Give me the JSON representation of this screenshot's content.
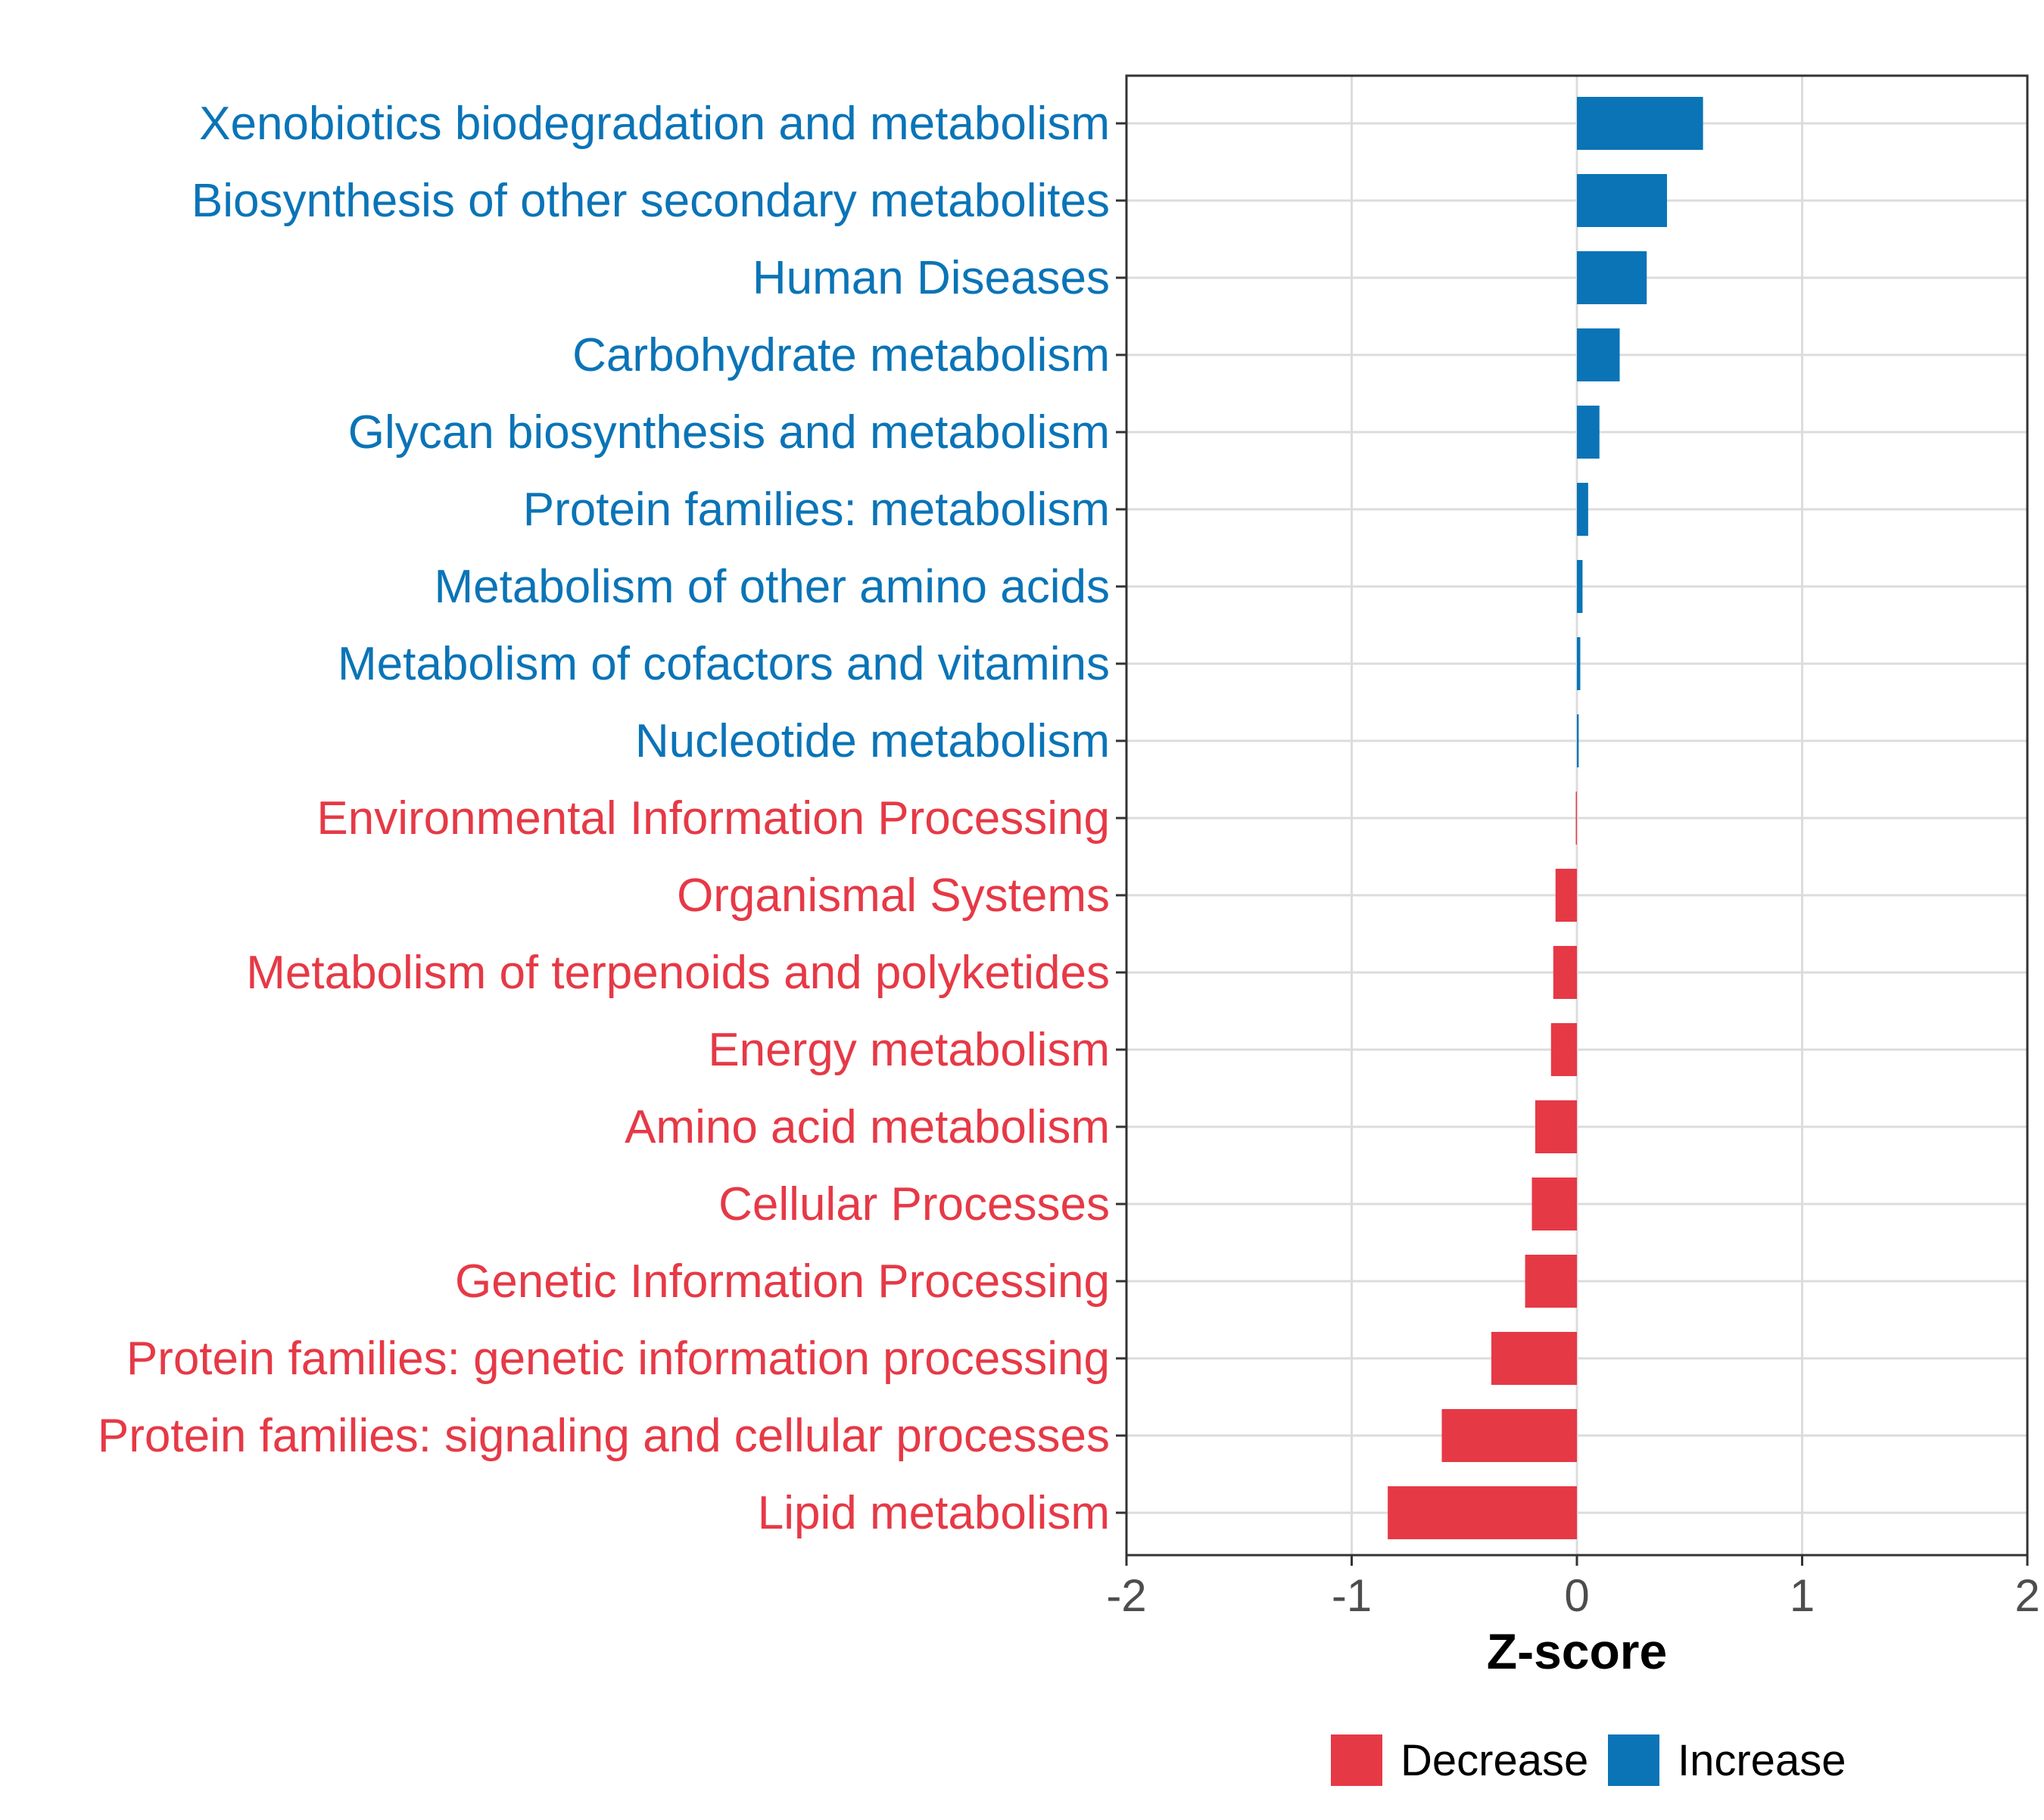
{
  "chart_data": {
    "type": "bar",
    "orientation": "horizontal",
    "xlabel": "Z-score",
    "xlim": [
      -2,
      2
    ],
    "xticks": [
      -2,
      -1,
      0,
      1,
      2
    ],
    "xtick_labels": [
      "-2",
      "-1",
      "0",
      "1",
      "2"
    ],
    "grid": true,
    "categories": [
      "Xenobiotics biodegradation and metabolism",
      "Biosynthesis of other secondary metabolites",
      "Human Diseases",
      "Carbohydrate metabolism",
      "Glycan biosynthesis and metabolism",
      "Protein families: metabolism",
      "Metabolism of other amino acids",
      "Metabolism of cofactors and vitamins",
      "Nucleotide metabolism",
      "Environmental Information Processing",
      "Organismal Systems",
      "Metabolism of terpenoids and polyketides",
      "Energy metabolism",
      "Amino acid metabolism",
      "Cellular Processes",
      "Genetic Information Processing",
      "Protein families: genetic information processing",
      "Protein families: signaling and cellular processes",
      "Lipid metabolism"
    ],
    "values": [
      0.56,
      0.4,
      0.31,
      0.19,
      0.1,
      0.05,
      0.025,
      0.015,
      0.008,
      -0.005,
      -0.095,
      -0.105,
      -0.115,
      -0.185,
      -0.2,
      -0.23,
      -0.38,
      -0.6,
      -0.84
    ],
    "groups": [
      "Increase",
      "Increase",
      "Increase",
      "Increase",
      "Increase",
      "Increase",
      "Increase",
      "Increase",
      "Increase",
      "Decrease",
      "Decrease",
      "Decrease",
      "Decrease",
      "Decrease",
      "Decrease",
      "Decrease",
      "Decrease",
      "Decrease",
      "Decrease"
    ],
    "legend": {
      "position": "bottom",
      "entries": [
        {
          "label": "Decrease",
          "color": "#e63946"
        },
        {
          "label": "Increase",
          "color": "#0a74b7"
        }
      ]
    },
    "colors": {
      "Decrease": "#e63946",
      "Increase": "#0a74b7"
    }
  }
}
